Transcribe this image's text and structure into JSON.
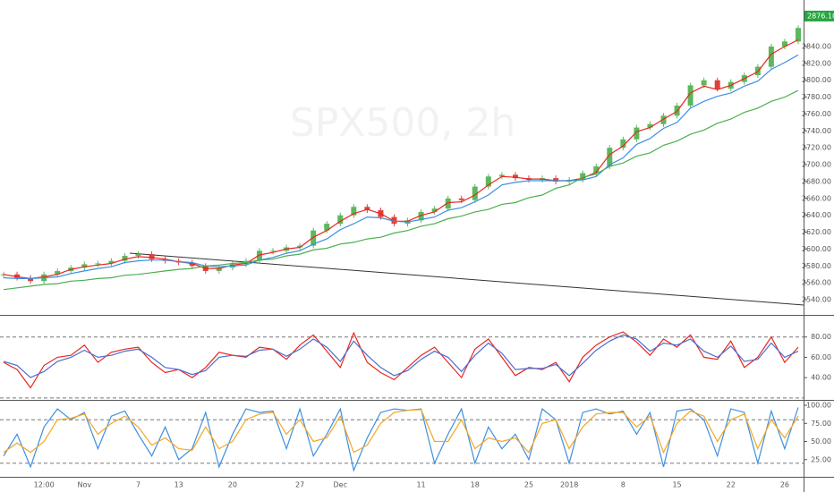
{
  "chart_data": [
    {
      "type": "line",
      "watermark": "SPX500, 2h",
      "ylim": [
        2522,
        2893
      ],
      "yticks": [
        {
          "value": 2540,
          "label": "2540.00"
        },
        {
          "value": 2560,
          "label": "2560.00"
        },
        {
          "value": 2580,
          "label": "2580.00"
        },
        {
          "value": 2600,
          "label": "2600.00"
        },
        {
          "value": 2620,
          "label": "2620.00"
        },
        {
          "value": 2640,
          "label": "2640.00"
        },
        {
          "value": 2660,
          "label": "2660.00"
        },
        {
          "value": 2680,
          "label": "2680.00"
        },
        {
          "value": 2700,
          "label": "2700.00"
        },
        {
          "value": 2720,
          "label": "2720.00"
        },
        {
          "value": 2740,
          "label": "2740.00"
        },
        {
          "value": 2760,
          "label": "2760.00"
        },
        {
          "value": 2780,
          "label": "2780.00"
        },
        {
          "value": 2800,
          "label": "2800.00"
        },
        {
          "value": 2820,
          "label": "2820.00"
        },
        {
          "value": 2840,
          "label": "2840.00"
        }
      ],
      "last_price": {
        "value": 2876.1,
        "label": "2876.10"
      },
      "last_price_color": "#26a641",
      "series": [
        {
          "style": "candles",
          "up_color": "#5cb85c",
          "down_color": "#e0403a",
          "values": [
            2570,
            2566,
            2562,
            2570,
            2574,
            2578,
            2582,
            2583,
            2586,
            2592,
            2594,
            2588,
            2586,
            2584,
            2580,
            2574,
            2578,
            2582,
            2586,
            2598,
            2598,
            2602,
            2604,
            2622,
            2630,
            2640,
            2650,
            2646,
            2638,
            2630,
            2634,
            2644,
            2648,
            2660,
            2658,
            2674,
            2686,
            2688,
            2684,
            2682,
            2684,
            2680,
            2682,
            2690,
            2698,
            2720,
            2730,
            2744,
            2748,
            2758,
            2770,
            2794,
            2800,
            2790,
            2798,
            2806,
            2816,
            2840,
            2846,
            2862
          ]
        },
        {
          "color": "#e8261f",
          "values": [
            2570,
            2567,
            2565,
            2567,
            2570,
            2576,
            2579,
            2581,
            2583,
            2588,
            2591,
            2590,
            2588,
            2585,
            2583,
            2577,
            2577,
            2581,
            2583,
            2593,
            2596,
            2600,
            2602,
            2614,
            2622,
            2633,
            2642,
            2647,
            2642,
            2633,
            2633,
            2640,
            2644,
            2655,
            2656,
            2664,
            2676,
            2686,
            2685,
            2683,
            2683,
            2681,
            2681,
            2684,
            2691,
            2712,
            2722,
            2739,
            2744,
            2754,
            2763,
            2785,
            2793,
            2789,
            2794,
            2802,
            2810,
            2831,
            2840,
            2848
          ]
        },
        {
          "color": "#3d8fe0",
          "values": [
            2566,
            2565,
            2565,
            2566,
            2567,
            2571,
            2574,
            2577,
            2579,
            2584,
            2586,
            2587,
            2587,
            2585,
            2584,
            2580,
            2579,
            2580,
            2581,
            2587,
            2590,
            2595,
            2598,
            2606,
            2612,
            2623,
            2630,
            2638,
            2637,
            2633,
            2632,
            2635,
            2638,
            2646,
            2649,
            2656,
            2664,
            2676,
            2679,
            2681,
            2681,
            2681,
            2681,
            2682,
            2686,
            2700,
            2708,
            2724,
            2731,
            2743,
            2750,
            2767,
            2775,
            2781,
            2785,
            2793,
            2799,
            2813,
            2821,
            2830
          ]
        },
        {
          "color": "#4caf50",
          "values": [
            2552,
            2554,
            2556,
            2558,
            2559,
            2562,
            2563,
            2565,
            2566,
            2569,
            2570,
            2572,
            2574,
            2576,
            2577,
            2580,
            2581,
            2583,
            2584,
            2587,
            2588,
            2592,
            2594,
            2599,
            2601,
            2606,
            2608,
            2612,
            2614,
            2619,
            2622,
            2627,
            2630,
            2636,
            2639,
            2644,
            2647,
            2653,
            2655,
            2661,
            2664,
            2672,
            2676,
            2685,
            2689,
            2698,
            2702,
            2710,
            2714,
            2723,
            2728,
            2736,
            2741,
            2749,
            2754,
            2762,
            2767,
            2775,
            2780,
            2788
          ]
        }
      ]
    },
    {
      "type": "line",
      "ylim": [
        19,
        100
      ],
      "yticks": [
        {
          "value": 40,
          "label": "40.00"
        },
        {
          "value": 60,
          "label": "60.00"
        },
        {
          "value": 80,
          "label": "80.00"
        }
      ],
      "bands": [
        80,
        20
      ],
      "series": [
        {
          "color": "#e8261f",
          "values": [
            55,
            48,
            30,
            52,
            60,
            62,
            72,
            55,
            65,
            68,
            70,
            55,
            45,
            48,
            40,
            50,
            65,
            62,
            60,
            70,
            68,
            58,
            72,
            82,
            66,
            50,
            84,
            55,
            45,
            38,
            50,
            62,
            70,
            55,
            40,
            68,
            78,
            60,
            42,
            50,
            48,
            55,
            36,
            60,
            72,
            80,
            85,
            75,
            62,
            78,
            70,
            82,
            60,
            58,
            76,
            50,
            60,
            80,
            55,
            70
          ]
        },
        {
          "color": "#4a6fd1",
          "values": [
            56,
            52,
            40,
            46,
            56,
            60,
            67,
            60,
            62,
            66,
            68,
            60,
            50,
            48,
            43,
            47,
            60,
            62,
            61,
            67,
            68,
            61,
            68,
            78,
            70,
            56,
            76,
            62,
            50,
            42,
            47,
            58,
            66,
            60,
            46,
            62,
            74,
            64,
            48,
            49,
            49,
            53,
            42,
            54,
            67,
            76,
            82,
            78,
            66,
            74,
            72,
            78,
            66,
            60,
            71,
            56,
            58,
            74,
            60,
            66
          ]
        }
      ]
    },
    {
      "type": "line",
      "ylim": [
        2.5,
        105
      ],
      "yticks": [
        {
          "value": 25,
          "label": "25.00"
        },
        {
          "value": 50,
          "label": "50.00"
        },
        {
          "value": 75,
          "label": "75.00"
        },
        {
          "value": 100,
          "label": "100.00"
        }
      ],
      "bands": [
        80,
        20
      ],
      "categories": [
        null,
        null,
        null,
        "12:00",
        null,
        null,
        "Nov",
        null,
        null,
        null,
        "7",
        null,
        null,
        "13",
        null,
        null,
        null,
        "20",
        null,
        null,
        null,
        null,
        "27",
        null,
        null,
        "Dec",
        null,
        null,
        null,
        null,
        null,
        "11",
        null,
        null,
        null,
        "18",
        null,
        null,
        null,
        "25",
        null,
        null,
        "2018",
        null,
        null,
        null,
        "8",
        null,
        null,
        null,
        "15",
        null,
        null,
        null,
        "22",
        null,
        null,
        null,
        "26",
        null
      ],
      "series": [
        {
          "color": "#3d8fe0",
          "values": [
            30,
            60,
            15,
            70,
            95,
            80,
            90,
            40,
            85,
            92,
            60,
            30,
            70,
            25,
            40,
            90,
            15,
            60,
            95,
            90,
            92,
            40,
            95,
            30,
            60,
            95,
            10,
            55,
            90,
            95,
            93,
            95,
            20,
            60,
            95,
            20,
            70,
            40,
            60,
            25,
            95,
            80,
            20,
            90,
            95,
            88,
            92,
            60,
            90,
            15,
            92,
            95,
            80,
            30,
            95,
            90,
            20,
            92,
            40,
            97
          ]
        },
        {
          "color": "#f5a623",
          "values": [
            35,
            48,
            35,
            50,
            80,
            82,
            88,
            60,
            75,
            85,
            70,
            45,
            55,
            40,
            38,
            70,
            40,
            50,
            80,
            88,
            90,
            60,
            80,
            50,
            55,
            85,
            35,
            45,
            75,
            90,
            93,
            94,
            50,
            50,
            80,
            40,
            55,
            50,
            55,
            35,
            75,
            80,
            40,
            70,
            88,
            90,
            90,
            70,
            85,
            35,
            75,
            92,
            85,
            50,
            80,
            88,
            40,
            80,
            55,
            85
          ]
        }
      ]
    }
  ]
}
